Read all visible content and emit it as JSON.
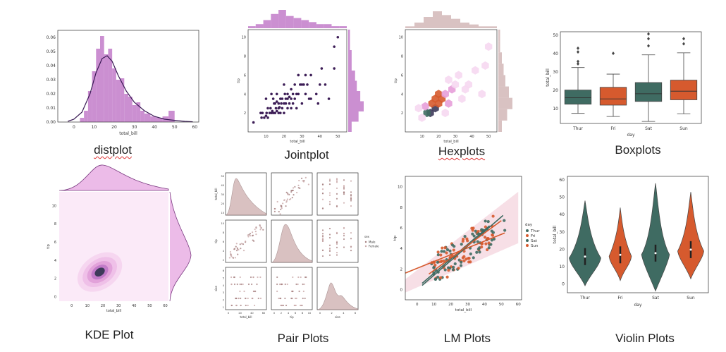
{
  "colors": {
    "pink": "#c27bc9",
    "pink_light": "#ecbbe8",
    "navy": "#3b1f55",
    "green": "#3f6b62",
    "orange": "#d65a2e",
    "dot_purple": "#3d1e57",
    "tan": "#c9a8a8"
  },
  "captions": {
    "distplot": "distplot",
    "jointplot": "Jointplot",
    "hexplots": "Hexplots",
    "boxplots": "Boxplots",
    "kde": "KDE Plot",
    "pair": "Pair Plots",
    "lm": "LM Plots",
    "violin": "Violin Plots"
  },
  "chart_data": [
    {
      "type": "bar",
      "id": "distplot",
      "xlabel": "total_bill",
      "x_ticks": [
        "0",
        "10",
        "20",
        "30",
        "40",
        "50",
        "60"
      ],
      "y_ticks": [
        "0.00",
        "0.01",
        "0.02",
        "0.03",
        "0.04",
        "0.05",
        "0.06"
      ],
      "xlim": [
        -8,
        62
      ],
      "ylim": [
        0,
        0.065
      ],
      "bin_edges": [
        3,
        5,
        7,
        9,
        11,
        13,
        15,
        17,
        19,
        21,
        23,
        25,
        27,
        29,
        31,
        33,
        35,
        38,
        41,
        44,
        47,
        50
      ],
      "values": [
        0.003,
        0.008,
        0.022,
        0.036,
        0.052,
        0.061,
        0.048,
        0.052,
        0.038,
        0.03,
        0.031,
        0.02,
        0.018,
        0.012,
        0.014,
        0.008,
        0.006,
        0.004,
        0.003,
        0.004,
        0.008
      ],
      "kde": [
        [
          -3,
          0.0005
        ],
        [
          0,
          0.002
        ],
        [
          4,
          0.007
        ],
        [
          8,
          0.02
        ],
        [
          11,
          0.035
        ],
        [
          14,
          0.045
        ],
        [
          16.5,
          0.047
        ],
        [
          19,
          0.043
        ],
        [
          22,
          0.033
        ],
        [
          26,
          0.022
        ],
        [
          30,
          0.014
        ],
        [
          35,
          0.008
        ],
        [
          40,
          0.004
        ],
        [
          45,
          0.002
        ],
        [
          50,
          0.0012
        ],
        [
          55,
          0.0005
        ],
        [
          59,
          0.0002
        ]
      ]
    },
    {
      "type": "scatter",
      "id": "jointplot",
      "xlabel": "total_bill",
      "ylabel": "tip",
      "x_ticks": [
        "10",
        "20",
        "30",
        "40",
        "50"
      ],
      "y_ticks": [
        "2",
        "4",
        "6",
        "8",
        "10"
      ],
      "xlim": [
        0,
        55
      ],
      "ylim": [
        0,
        10.8
      ],
      "points": [
        [
          3,
          1
        ],
        [
          7.5,
          1.5
        ],
        [
          8,
          2
        ],
        [
          9,
          1.5
        ],
        [
          10,
          1.7
        ],
        [
          10.3,
          2
        ],
        [
          11,
          1.5
        ],
        [
          12,
          2
        ],
        [
          12.5,
          2.5
        ],
        [
          13,
          2
        ],
        [
          13.5,
          2.2
        ],
        [
          14,
          2
        ],
        [
          14.5,
          3
        ],
        [
          15,
          2
        ],
        [
          15,
          3
        ],
        [
          15.5,
          2.5
        ],
        [
          16,
          2.2
        ],
        [
          16,
          3.2
        ],
        [
          17,
          2
        ],
        [
          17,
          3
        ],
        [
          17.5,
          2.6
        ],
        [
          18,
          2
        ],
        [
          18,
          3.5
        ],
        [
          18.5,
          3
        ],
        [
          19,
          2.5
        ],
        [
          19,
          3.5
        ],
        [
          20,
          2
        ],
        [
          20,
          3
        ],
        [
          20.5,
          4
        ],
        [
          21,
          3
        ],
        [
          21,
          3.5
        ],
        [
          22,
          2.5
        ],
        [
          22,
          4
        ],
        [
          23,
          3
        ],
        [
          23,
          3.7
        ],
        [
          24,
          3.5
        ],
        [
          24,
          4.5
        ],
        [
          25,
          3
        ],
        [
          25,
          4
        ],
        [
          26,
          3.5
        ],
        [
          26,
          5
        ],
        [
          27,
          4
        ],
        [
          27,
          2.5
        ],
        [
          28,
          4
        ],
        [
          28,
          6
        ],
        [
          29,
          5
        ],
        [
          30,
          3
        ],
        [
          30,
          5
        ],
        [
          31,
          5
        ],
        [
          32,
          4
        ],
        [
          32,
          6
        ],
        [
          33,
          5
        ],
        [
          34,
          3.5
        ],
        [
          35,
          3.5
        ],
        [
          35,
          6
        ],
        [
          38,
          4
        ],
        [
          39,
          3
        ],
        [
          40,
          5
        ],
        [
          41,
          6.7
        ],
        [
          43,
          5
        ],
        [
          45,
          3.5
        ],
        [
          48,
          6.7
        ],
        [
          48,
          9
        ],
        [
          50,
          10
        ],
        [
          10,
          3.5
        ],
        [
          13,
          4
        ],
        [
          16,
          4
        ],
        [
          20,
          5
        ],
        [
          24,
          2.5
        ],
        [
          7,
          2
        ],
        [
          11,
          2.5
        ],
        [
          14,
          3.5
        ],
        [
          17,
          2.5
        ],
        [
          22,
          3.5
        ]
      ],
      "top_hist": [
        1,
        2,
        4,
        7,
        9,
        6,
        5,
        4,
        3,
        2,
        2,
        1,
        1
      ],
      "right_hist": [
        2,
        6,
        9,
        7,
        5,
        4,
        2,
        2,
        1,
        1
      ]
    },
    {
      "type": "heatmap",
      "id": "hexplots",
      "xlabel": "total_bill",
      "ylabel": "tip",
      "x_ticks": [
        "10",
        "20",
        "30",
        "40",
        "50"
      ],
      "y_ticks": [
        "2",
        "4",
        "6",
        "8",
        "10"
      ],
      "xlim": [
        0,
        55
      ],
      "ylim": [
        0,
        10.8
      ],
      "hex_cells": [
        [
          15,
          2,
          "dark"
        ],
        [
          18,
          2.5,
          "dark"
        ],
        [
          13,
          2,
          "green"
        ],
        [
          16,
          3,
          "orange"
        ],
        [
          20,
          3,
          "orange"
        ],
        [
          18,
          3.5,
          "orange"
        ],
        [
          22,
          3.5,
          "orange"
        ],
        [
          20,
          4,
          "orange"
        ],
        [
          24,
          4,
          "pinkmid"
        ],
        [
          12,
          2.7,
          "pinkmid"
        ],
        [
          26,
          3,
          "pinkmid"
        ],
        [
          28,
          4.5,
          "pinkmid"
        ],
        [
          30,
          5,
          "pinklight"
        ],
        [
          34,
          3.5,
          "pinklight"
        ],
        [
          32,
          6,
          "pinklight"
        ],
        [
          38,
          5,
          "pinklight"
        ],
        [
          42,
          6.5,
          "pinklight"
        ],
        [
          46,
          4,
          "pinklight"
        ],
        [
          48,
          7,
          "pinklight"
        ],
        [
          50,
          9,
          "pinklight"
        ],
        [
          10,
          1.5,
          "pinklight"
        ],
        [
          8,
          2.5,
          "pinklight"
        ],
        [
          24,
          2,
          "pinklight"
        ],
        [
          26,
          5.5,
          "pinklight"
        ],
        [
          36,
          4.5,
          "pinklight"
        ]
      ],
      "top_hist": [
        1,
        3,
        6,
        9,
        7,
        5,
        3,
        2,
        1,
        1
      ],
      "right_hist": [
        2,
        5,
        8,
        6,
        4,
        3,
        2,
        1,
        1
      ]
    },
    {
      "type": "bar",
      "id": "boxplots",
      "xlabel": "day",
      "ylabel": "total_bill",
      "categories": [
        "Thur",
        "Fri",
        "Sat",
        "Sun"
      ],
      "y_ticks": [
        "10",
        "20",
        "30",
        "40",
        "50"
      ],
      "ylim": [
        2,
        52
      ],
      "boxes": [
        {
          "category": "Thur",
          "min": 7.5,
          "q1": 12.5,
          "median": 16,
          "q3": 20.2,
          "max": 32.5,
          "outliers": [
            34.5,
            35.8,
            41,
            43
          ],
          "color": "green"
        },
        {
          "category": "Fri",
          "min": 5.8,
          "q1": 12,
          "median": 15.4,
          "q3": 21.7,
          "max": 28.9,
          "outliers": [
            40.2
          ],
          "color": "orange"
        },
        {
          "category": "Sat",
          "min": 3.1,
          "q1": 14,
          "median": 18.2,
          "q3": 24.3,
          "max": 39.4,
          "outliers": [
            44.3,
            48.2,
            50.8
          ],
          "color": "green"
        },
        {
          "category": "Sun",
          "min": 7.3,
          "q1": 14.9,
          "median": 19.6,
          "q3": 25.6,
          "max": 40.5,
          "outliers": [
            45.4,
            48.2
          ],
          "color": "orange"
        }
      ]
    },
    {
      "type": "heatmap",
      "id": "kde",
      "xlabel": "total_bill",
      "ylabel": "tip",
      "x_ticks": [
        "0",
        "10",
        "20",
        "30",
        "40",
        "50",
        "60"
      ],
      "y_ticks": [
        "0",
        "2",
        "4",
        "6",
        "8",
        "10"
      ],
      "xlim": [
        -8,
        62
      ],
      "ylim": [
        -0.5,
        11.5
      ],
      "contour_levels": 5
    },
    {
      "type": "scatter",
      "id": "pairplot",
      "variables": [
        "total_bill",
        "tip",
        "size"
      ],
      "legend_title": "sex",
      "legend": [
        "Male",
        "Female"
      ],
      "row_tick_labels": [
        [
          "10",
          "20",
          "30",
          "40",
          "50"
        ],
        [
          "2",
          "4",
          "6",
          "8",
          "10"
        ],
        [
          "1",
          "2",
          "3",
          "4",
          "5",
          "6"
        ]
      ],
      "col_tick_labels": [
        [
          "0",
          "20",
          "40",
          "60"
        ],
        [
          "0",
          "2",
          "4",
          "6",
          "8",
          "10"
        ],
        [
          "0",
          "2",
          "4",
          "6"
        ]
      ]
    },
    {
      "type": "line",
      "id": "lmplot",
      "xlabel": "total_bill",
      "ylabel": "tip",
      "x_ticks": [
        "0",
        "10",
        "20",
        "30",
        "40",
        "50",
        "60"
      ],
      "y_ticks": [
        "0",
        "2",
        "4",
        "6",
        "8",
        "10"
      ],
      "xlim": [
        -7,
        62
      ],
      "ylim": [
        -1,
        11
      ],
      "legend_title": "day",
      "series": [
        {
          "name": "Thur",
          "color": "green",
          "line": [
            [
              3,
              0.6
            ],
            [
              43,
              6.2
            ]
          ]
        },
        {
          "name": "Fri",
          "color": "orange",
          "line": [
            [
              -7,
              1.6
            ],
            [
              52,
              5.5
            ]
          ]
        },
        {
          "name": "Sat",
          "color": "green",
          "line": [
            [
              3,
              0.4
            ],
            [
              51,
              7.2
            ]
          ]
        },
        {
          "name": "Sun",
          "color": "orange",
          "line": [
            [
              7,
              1.5
            ],
            [
              50,
              6.7
            ]
          ]
        }
      ]
    },
    {
      "type": "area",
      "id": "violinplot",
      "xlabel": "day",
      "ylabel": "total_bill",
      "categories": [
        "Thur",
        "Fri",
        "Sat",
        "Sun"
      ],
      "y_ticks": [
        "0",
        "10",
        "20",
        "30",
        "40",
        "50",
        "60"
      ],
      "ylim": [
        -5,
        62
      ],
      "violins": [
        {
          "category": "Thur",
          "min": -1,
          "max": 48,
          "peak": 15,
          "width": 0.85,
          "color": "green"
        },
        {
          "category": "Fri",
          "min": 2,
          "max": 44,
          "peak": 16,
          "width": 0.6,
          "color": "orange"
        },
        {
          "category": "Sat",
          "min": -4,
          "max": 58,
          "peak": 17,
          "width": 0.75,
          "color": "green"
        },
        {
          "category": "Sun",
          "min": 3,
          "max": 53,
          "peak": 19,
          "width": 0.7,
          "color": "orange"
        }
      ]
    }
  ]
}
